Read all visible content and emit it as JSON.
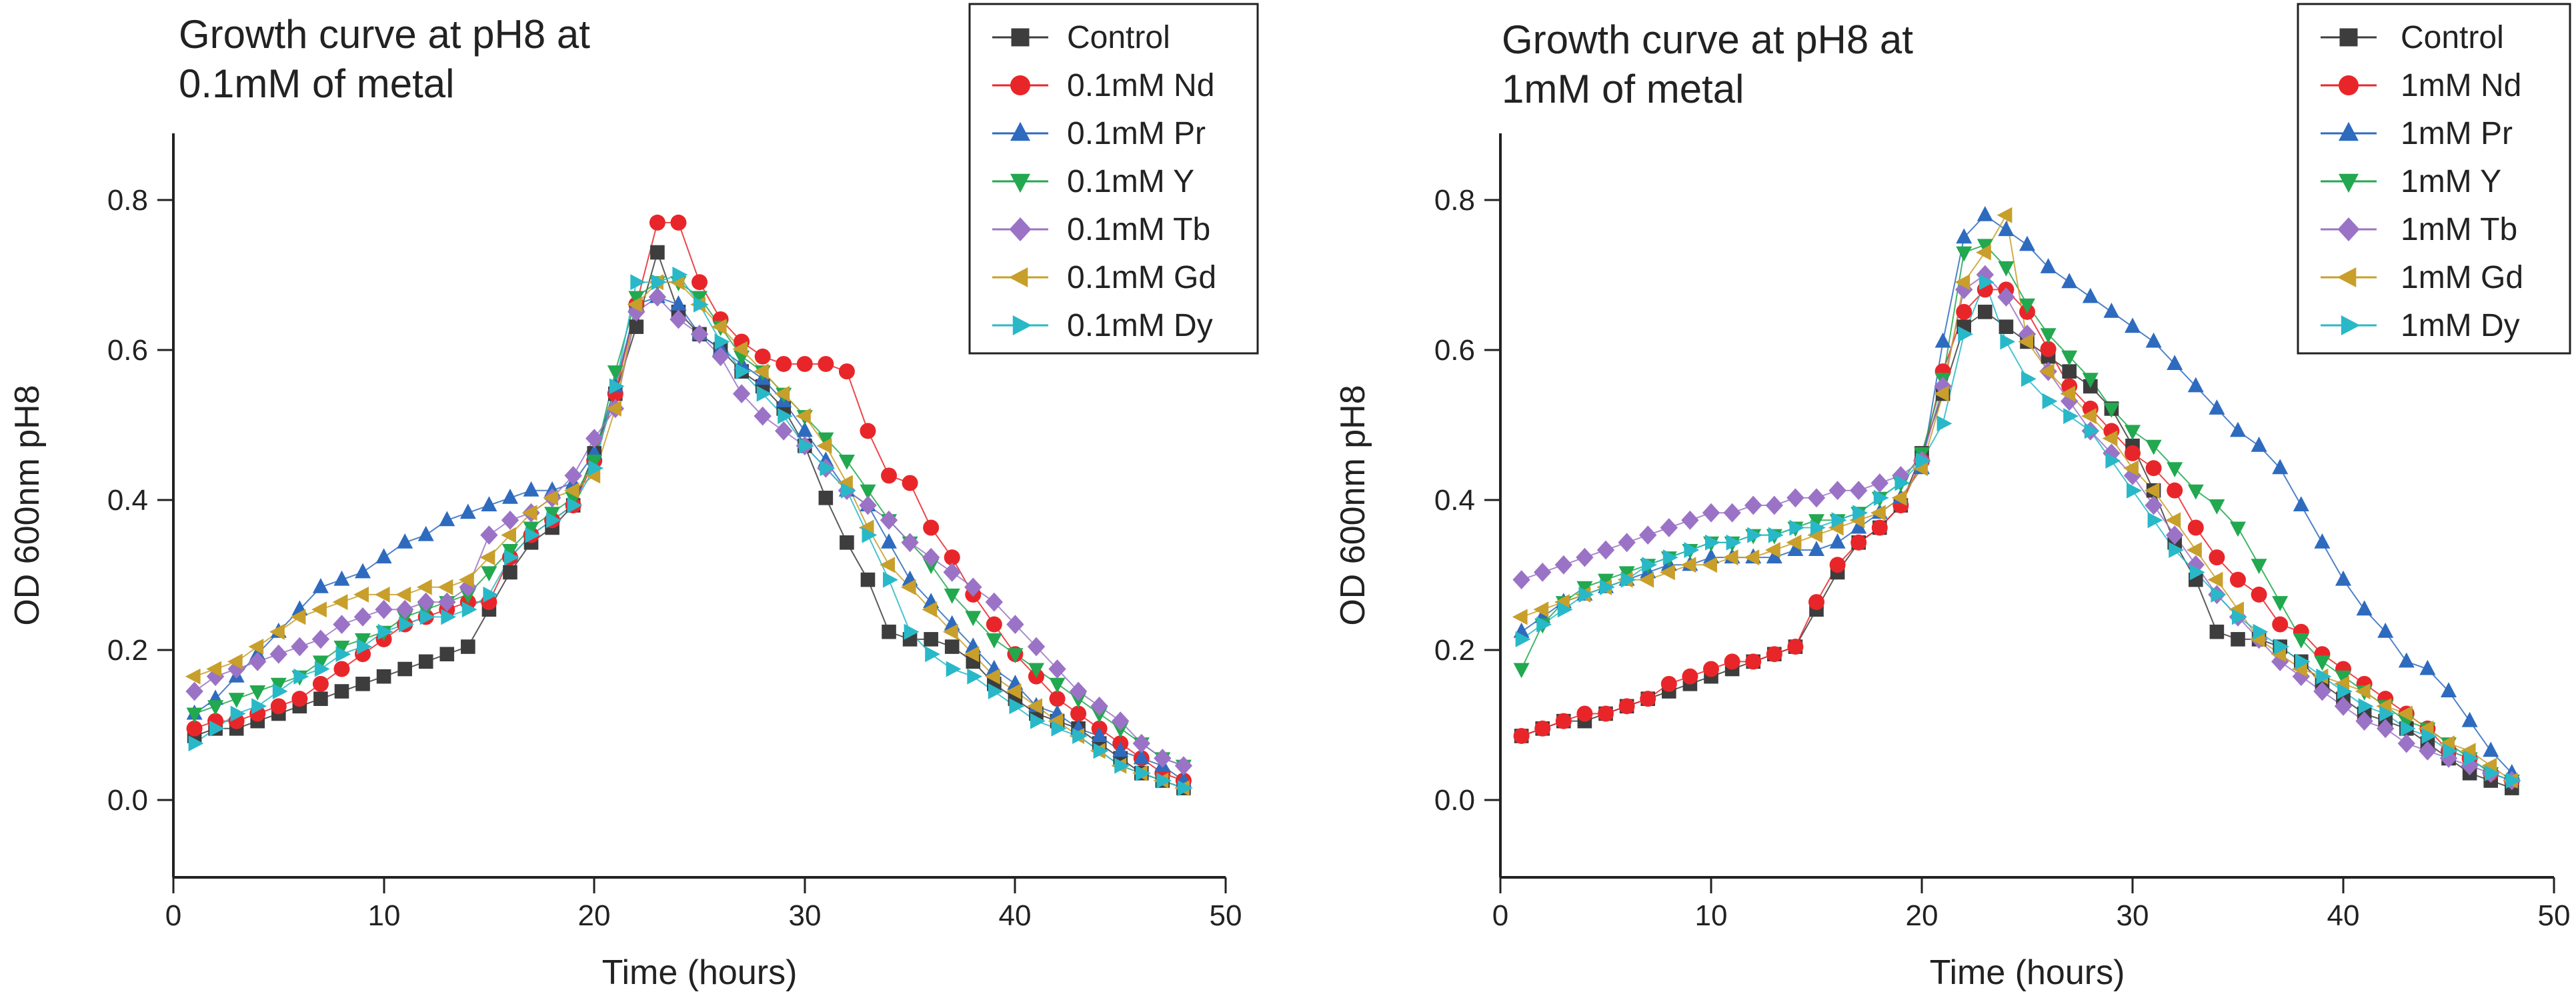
{
  "chart_data": [
    {
      "type": "scatter",
      "title": "Growth curve at pH8 at 0.1mM of metal",
      "title_lines": [
        "Growth curve at pH8 at",
        "0.1mM of metal"
      ],
      "xlabel": "Time (hours)",
      "ylabel": "OD 600nm pH8",
      "xlim": [
        0,
        50
      ],
      "ylim": [
        -0.1,
        0.9
      ],
      "xticks": [
        0,
        10,
        20,
        30,
        40,
        50
      ],
      "yticks": [
        0.0,
        0.2,
        0.4,
        0.6,
        0.8
      ],
      "xtick_labels": [
        "0",
        "10",
        "20",
        "30",
        "40",
        "50"
      ],
      "ytick_labels": [
        "0.0",
        "0.2",
        "0.4",
        "0.6",
        "0.8"
      ],
      "legend_position": "top-right",
      "x": [
        1,
        2,
        3,
        4,
        5,
        6,
        7,
        8,
        9,
        10,
        11,
        12,
        13,
        14,
        15,
        16,
        17,
        18,
        19,
        20,
        21,
        22,
        23,
        24,
        25,
        26,
        27,
        28,
        29,
        30,
        31,
        32,
        33,
        34,
        35,
        36,
        37,
        38,
        39,
        40,
        41,
        42,
        43,
        44,
        45,
        46,
        47,
        48
      ],
      "series": [
        {
          "name": "Control",
          "marker": "square",
          "color": "#3d3d3d",
          "values": [
            0.09,
            0.1,
            0.1,
            0.11,
            0.12,
            0.13,
            0.14,
            0.15,
            0.16,
            0.17,
            0.18,
            0.19,
            0.2,
            0.21,
            0.26,
            0.31,
            0.35,
            0.37,
            0.4,
            0.47,
            0.55,
            0.64,
            0.74,
            0.66,
            0.63,
            0.61,
            0.58,
            0.56,
            0.53,
            0.48,
            0.41,
            0.35,
            0.3,
            0.23,
            0.22,
            0.22,
            0.21,
            0.19,
            0.16,
            0.14,
            0.12,
            0.11,
            0.1,
            0.08,
            0.06,
            0.04,
            0.03,
            0.02
          ]
        },
        {
          "name": "0.1mM Nd",
          "marker": "circle",
          "color": "#e8262a",
          "values": [
            0.1,
            0.11,
            0.11,
            0.12,
            0.13,
            0.14,
            0.16,
            0.18,
            0.2,
            0.22,
            0.24,
            0.25,
            0.26,
            0.27,
            0.27,
            0.33,
            0.36,
            0.38,
            0.4,
            0.46,
            0.55,
            0.67,
            0.78,
            0.78,
            0.7,
            0.65,
            0.62,
            0.6,
            0.59,
            0.59,
            0.59,
            0.58,
            0.5,
            0.44,
            0.43,
            0.37,
            0.33,
            0.28,
            0.24,
            0.2,
            0.17,
            0.14,
            0.12,
            0.1,
            0.08,
            0.06,
            0.04,
            0.03
          ]
        },
        {
          "name": "0.1mM Pr",
          "marker": "triangle-up",
          "color": "#2e6bbf",
          "values": [
            0.12,
            0.14,
            0.17,
            0.2,
            0.23,
            0.26,
            0.29,
            0.3,
            0.31,
            0.33,
            0.35,
            0.36,
            0.38,
            0.39,
            0.4,
            0.41,
            0.42,
            0.42,
            0.43,
            0.47,
            0.56,
            0.67,
            0.68,
            0.67,
            0.63,
            0.61,
            0.59,
            0.57,
            0.54,
            0.5,
            0.46,
            0.42,
            0.4,
            0.35,
            0.3,
            0.27,
            0.24,
            0.21,
            0.18,
            0.16,
            0.13,
            0.12,
            0.1,
            0.09,
            0.07,
            0.06,
            0.05,
            0.03
          ]
        },
        {
          "name": "0.1mM Y",
          "marker": "triangle-down",
          "color": "#22a84f",
          "values": [
            0.12,
            0.13,
            0.14,
            0.15,
            0.16,
            0.17,
            0.19,
            0.21,
            0.22,
            0.23,
            0.25,
            0.26,
            0.27,
            0.28,
            0.31,
            0.34,
            0.37,
            0.39,
            0.41,
            0.46,
            0.58,
            0.68,
            0.7,
            0.7,
            0.68,
            0.64,
            0.6,
            0.58,
            0.55,
            0.52,
            0.49,
            0.46,
            0.42,
            0.38,
            0.35,
            0.32,
            0.28,
            0.25,
            0.22,
            0.2,
            0.18,
            0.16,
            0.14,
            0.12,
            0.1,
            0.08,
            0.06,
            0.05
          ]
        },
        {
          "name": "0.1mM Tb",
          "marker": "diamond",
          "color": "#9b73c6",
          "values": [
            0.15,
            0.17,
            0.18,
            0.19,
            0.2,
            0.21,
            0.22,
            0.24,
            0.25,
            0.26,
            0.26,
            0.27,
            0.27,
            0.29,
            0.36,
            0.38,
            0.39,
            0.41,
            0.44,
            0.49,
            0.53,
            0.66,
            0.68,
            0.65,
            0.63,
            0.6,
            0.55,
            0.52,
            0.5,
            0.48,
            0.45,
            0.42,
            0.4,
            0.38,
            0.35,
            0.33,
            0.31,
            0.29,
            0.27,
            0.24,
            0.21,
            0.18,
            0.15,
            0.13,
            0.11,
            0.08,
            0.06,
            0.05
          ]
        },
        {
          "name": "0.1mM Gd",
          "marker": "triangle-left",
          "color": "#c89f2b",
          "values": [
            0.17,
            0.18,
            0.19,
            0.21,
            0.23,
            0.25,
            0.26,
            0.27,
            0.28,
            0.28,
            0.28,
            0.29,
            0.29,
            0.3,
            0.33,
            0.36,
            0.39,
            0.41,
            0.42,
            0.44,
            0.53,
            0.67,
            0.7,
            0.7,
            0.67,
            0.64,
            0.61,
            0.58,
            0.55,
            0.52,
            0.48,
            0.43,
            0.37,
            0.32,
            0.29,
            0.26,
            0.23,
            0.2,
            0.17,
            0.15,
            0.13,
            0.11,
            0.09,
            0.07,
            0.05,
            0.04,
            0.03,
            0.02
          ]
        },
        {
          "name": "0.1mM Dy",
          "marker": "triangle-right",
          "color": "#29b8c8",
          "values": [
            0.08,
            0.1,
            0.12,
            0.13,
            0.15,
            0.17,
            0.18,
            0.2,
            0.21,
            0.23,
            0.24,
            0.25,
            0.25,
            0.26,
            0.28,
            0.33,
            0.36,
            0.38,
            0.4,
            0.45,
            0.56,
            0.7,
            0.7,
            0.71,
            0.67,
            0.62,
            0.58,
            0.55,
            0.52,
            0.48,
            0.45,
            0.42,
            0.36,
            0.3,
            0.23,
            0.2,
            0.18,
            0.17,
            0.15,
            0.13,
            0.11,
            0.1,
            0.09,
            0.07,
            0.05,
            0.04,
            0.03,
            0.02
          ]
        }
      ]
    },
    {
      "type": "scatter",
      "title": "Growth curve at pH8 at 1mM of metal",
      "title_lines": [
        "Growth curve at pH8 at",
        "1mM of metal"
      ],
      "xlabel": "Time (hours)",
      "ylabel": "OD 600nm pH8",
      "xlim": [
        0,
        50
      ],
      "ylim": [
        -0.1,
        0.9
      ],
      "xticks": [
        0,
        10,
        20,
        30,
        40,
        50
      ],
      "yticks": [
        0.0,
        0.2,
        0.4,
        0.6,
        0.8
      ],
      "xtick_labels": [
        "0",
        "10",
        "20",
        "30",
        "40",
        "50"
      ],
      "ytick_labels": [
        "0.0",
        "0.2",
        "0.4",
        "0.6",
        "0.8"
      ],
      "legend_position": "top-right",
      "x": [
        1,
        2,
        3,
        4,
        5,
        6,
        7,
        8,
        9,
        10,
        11,
        12,
        13,
        14,
        15,
        16,
        17,
        18,
        19,
        20,
        21,
        22,
        23,
        24,
        25,
        26,
        27,
        28,
        29,
        30,
        31,
        32,
        33,
        34,
        35,
        36,
        37,
        38,
        39,
        40,
        41,
        42,
        43,
        44,
        45,
        46,
        47,
        48
      ],
      "series": [
        {
          "name": "Control",
          "marker": "square",
          "color": "#3d3d3d",
          "values": [
            0.09,
            0.1,
            0.11,
            0.11,
            0.12,
            0.13,
            0.14,
            0.15,
            0.16,
            0.17,
            0.18,
            0.19,
            0.2,
            0.21,
            0.26,
            0.31,
            0.35,
            0.37,
            0.4,
            0.47,
            0.55,
            0.64,
            0.66,
            0.64,
            0.62,
            0.6,
            0.58,
            0.56,
            0.53,
            0.48,
            0.42,
            0.35,
            0.3,
            0.23,
            0.22,
            0.22,
            0.21,
            0.19,
            0.16,
            0.14,
            0.12,
            0.11,
            0.1,
            0.08,
            0.06,
            0.04,
            0.03,
            0.02
          ]
        },
        {
          "name": "1mM Nd",
          "marker": "circle",
          "color": "#e8262a",
          "values": [
            0.09,
            0.1,
            0.11,
            0.12,
            0.12,
            0.13,
            0.14,
            0.16,
            0.17,
            0.18,
            0.19,
            0.19,
            0.2,
            0.21,
            0.27,
            0.32,
            0.35,
            0.37,
            0.4,
            0.46,
            0.58,
            0.66,
            0.69,
            0.69,
            0.66,
            0.61,
            0.56,
            0.53,
            0.5,
            0.47,
            0.45,
            0.42,
            0.37,
            0.33,
            0.3,
            0.28,
            0.24,
            0.23,
            0.2,
            0.18,
            0.16,
            0.14,
            0.12,
            0.1,
            0.07,
            0.06,
            0.04,
            0.03
          ]
        },
        {
          "name": "1mM Pr",
          "marker": "triangle-up",
          "color": "#2e6bbf",
          "values": [
            0.23,
            0.25,
            0.27,
            0.28,
            0.29,
            0.3,
            0.31,
            0.32,
            0.32,
            0.33,
            0.33,
            0.33,
            0.33,
            0.34,
            0.34,
            0.35,
            0.37,
            0.39,
            0.41,
            0.45,
            0.62,
            0.76,
            0.79,
            0.77,
            0.75,
            0.72,
            0.7,
            0.68,
            0.66,
            0.64,
            0.62,
            0.59,
            0.56,
            0.53,
            0.5,
            0.48,
            0.45,
            0.4,
            0.35,
            0.3,
            0.26,
            0.23,
            0.19,
            0.18,
            0.15,
            0.11,
            0.07,
            0.04
          ]
        },
        {
          "name": "1mM Y",
          "marker": "triangle-down",
          "color": "#22a84f",
          "values": [
            0.18,
            0.24,
            0.27,
            0.29,
            0.3,
            0.31,
            0.32,
            0.33,
            0.34,
            0.35,
            0.35,
            0.36,
            0.36,
            0.37,
            0.38,
            0.38,
            0.39,
            0.41,
            0.43,
            0.47,
            0.57,
            0.74,
            0.75,
            0.72,
            0.67,
            0.63,
            0.6,
            0.57,
            0.53,
            0.5,
            0.48,
            0.45,
            0.42,
            0.4,
            0.37,
            0.32,
            0.27,
            0.22,
            0.19,
            0.17,
            0.15,
            0.13,
            0.11,
            0.1,
            0.08,
            0.06,
            0.04,
            0.03
          ]
        },
        {
          "name": "1mM Tb",
          "marker": "diamond",
          "color": "#9b73c6",
          "values": [
            0.3,
            0.31,
            0.32,
            0.33,
            0.34,
            0.35,
            0.36,
            0.37,
            0.38,
            0.39,
            0.39,
            0.4,
            0.4,
            0.41,
            0.41,
            0.42,
            0.42,
            0.43,
            0.44,
            0.46,
            0.56,
            0.69,
            0.71,
            0.68,
            0.63,
            0.58,
            0.54,
            0.5,
            0.47,
            0.44,
            0.4,
            0.36,
            0.32,
            0.28,
            0.25,
            0.22,
            0.19,
            0.17,
            0.15,
            0.13,
            0.11,
            0.1,
            0.08,
            0.07,
            0.06,
            0.05,
            0.04,
            0.03
          ]
        },
        {
          "name": "1mM Gd",
          "marker": "triangle-left",
          "color": "#c89f2b",
          "values": [
            0.25,
            0.26,
            0.27,
            0.28,
            0.29,
            0.3,
            0.3,
            0.31,
            0.32,
            0.32,
            0.33,
            0.33,
            0.34,
            0.35,
            0.36,
            0.37,
            0.38,
            0.39,
            0.41,
            0.45,
            0.55,
            0.7,
            0.74,
            0.79,
            0.62,
            0.58,
            0.55,
            0.52,
            0.49,
            0.45,
            0.42,
            0.38,
            0.34,
            0.3,
            0.26,
            0.22,
            0.2,
            0.18,
            0.17,
            0.16,
            0.15,
            0.13,
            0.12,
            0.1,
            0.08,
            0.07,
            0.05,
            0.03
          ]
        },
        {
          "name": "1mM Dy",
          "marker": "triangle-right",
          "color": "#29b8c8",
          "values": [
            0.22,
            0.24,
            0.26,
            0.28,
            0.29,
            0.3,
            0.32,
            0.33,
            0.34,
            0.35,
            0.35,
            0.36,
            0.36,
            0.37,
            0.37,
            0.38,
            0.39,
            0.41,
            0.43,
            0.46,
            0.51,
            0.63,
            0.7,
            0.62,
            0.57,
            0.54,
            0.52,
            0.5,
            0.46,
            0.42,
            0.38,
            0.34,
            0.31,
            0.28,
            0.25,
            0.23,
            0.21,
            0.19,
            0.17,
            0.15,
            0.13,
            0.12,
            0.1,
            0.09,
            0.07,
            0.06,
            0.04,
            0.03
          ]
        }
      ]
    }
  ]
}
